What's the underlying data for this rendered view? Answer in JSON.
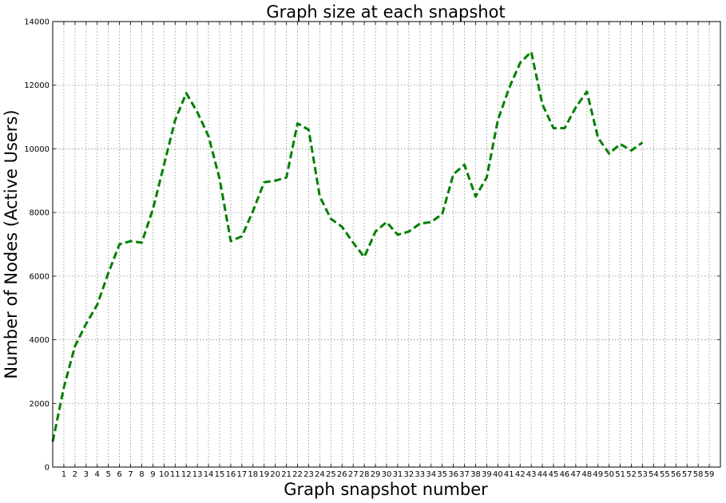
{
  "chart_data": {
    "type": "line",
    "title": "Graph size at each snapshot",
    "xlabel": "Graph snapshot number",
    "ylabel": "Number of Nodes (Active Users)",
    "xlim": [
      0,
      60
    ],
    "ylim": [
      0,
      14000
    ],
    "x_ticks": [
      1,
      2,
      3,
      4,
      5,
      6,
      7,
      8,
      9,
      10,
      11,
      12,
      13,
      14,
      15,
      16,
      17,
      18,
      19,
      20,
      21,
      22,
      23,
      24,
      25,
      26,
      27,
      28,
      29,
      30,
      31,
      32,
      33,
      34,
      35,
      36,
      37,
      38,
      39,
      40,
      41,
      42,
      43,
      44,
      45,
      46,
      47,
      48,
      49,
      50,
      51,
      52,
      53,
      54,
      55,
      56,
      57,
      58,
      59
    ],
    "y_ticks": [
      0,
      2000,
      4000,
      6000,
      8000,
      10000,
      12000,
      14000
    ],
    "grid": true,
    "line_color": "#007f00",
    "line_style": "dashed",
    "series": [
      {
        "x": [
          0,
          1,
          2,
          3,
          4,
          5,
          6,
          7,
          8,
          9,
          10,
          11,
          12,
          13,
          14,
          15,
          16,
          17,
          18,
          19,
          20,
          21,
          22,
          23,
          24,
          25,
          26,
          27,
          28,
          29,
          30,
          31,
          32,
          33,
          34,
          35,
          36,
          37,
          38,
          39,
          40,
          41,
          42,
          43,
          44,
          45,
          46,
          47,
          48,
          49,
          50,
          51,
          52,
          53
        ],
        "values": [
          800,
          2500,
          3800,
          4500,
          5100,
          6100,
          7000,
          7100,
          7050,
          8100,
          9500,
          10900,
          11750,
          11150,
          10400,
          9050,
          7100,
          7250,
          8050,
          8950,
          9000,
          9100,
          10800,
          10600,
          8500,
          7800,
          7550,
          7050,
          6600,
          7400,
          7700,
          7300,
          7400,
          7650,
          7700,
          7950,
          9200,
          9500,
          8500,
          9100,
          10900,
          11900,
          12700,
          13050,
          11400,
          10650,
          10650,
          11300,
          11800,
          10350,
          9850,
          10150,
          9950,
          10200
        ]
      }
    ]
  }
}
